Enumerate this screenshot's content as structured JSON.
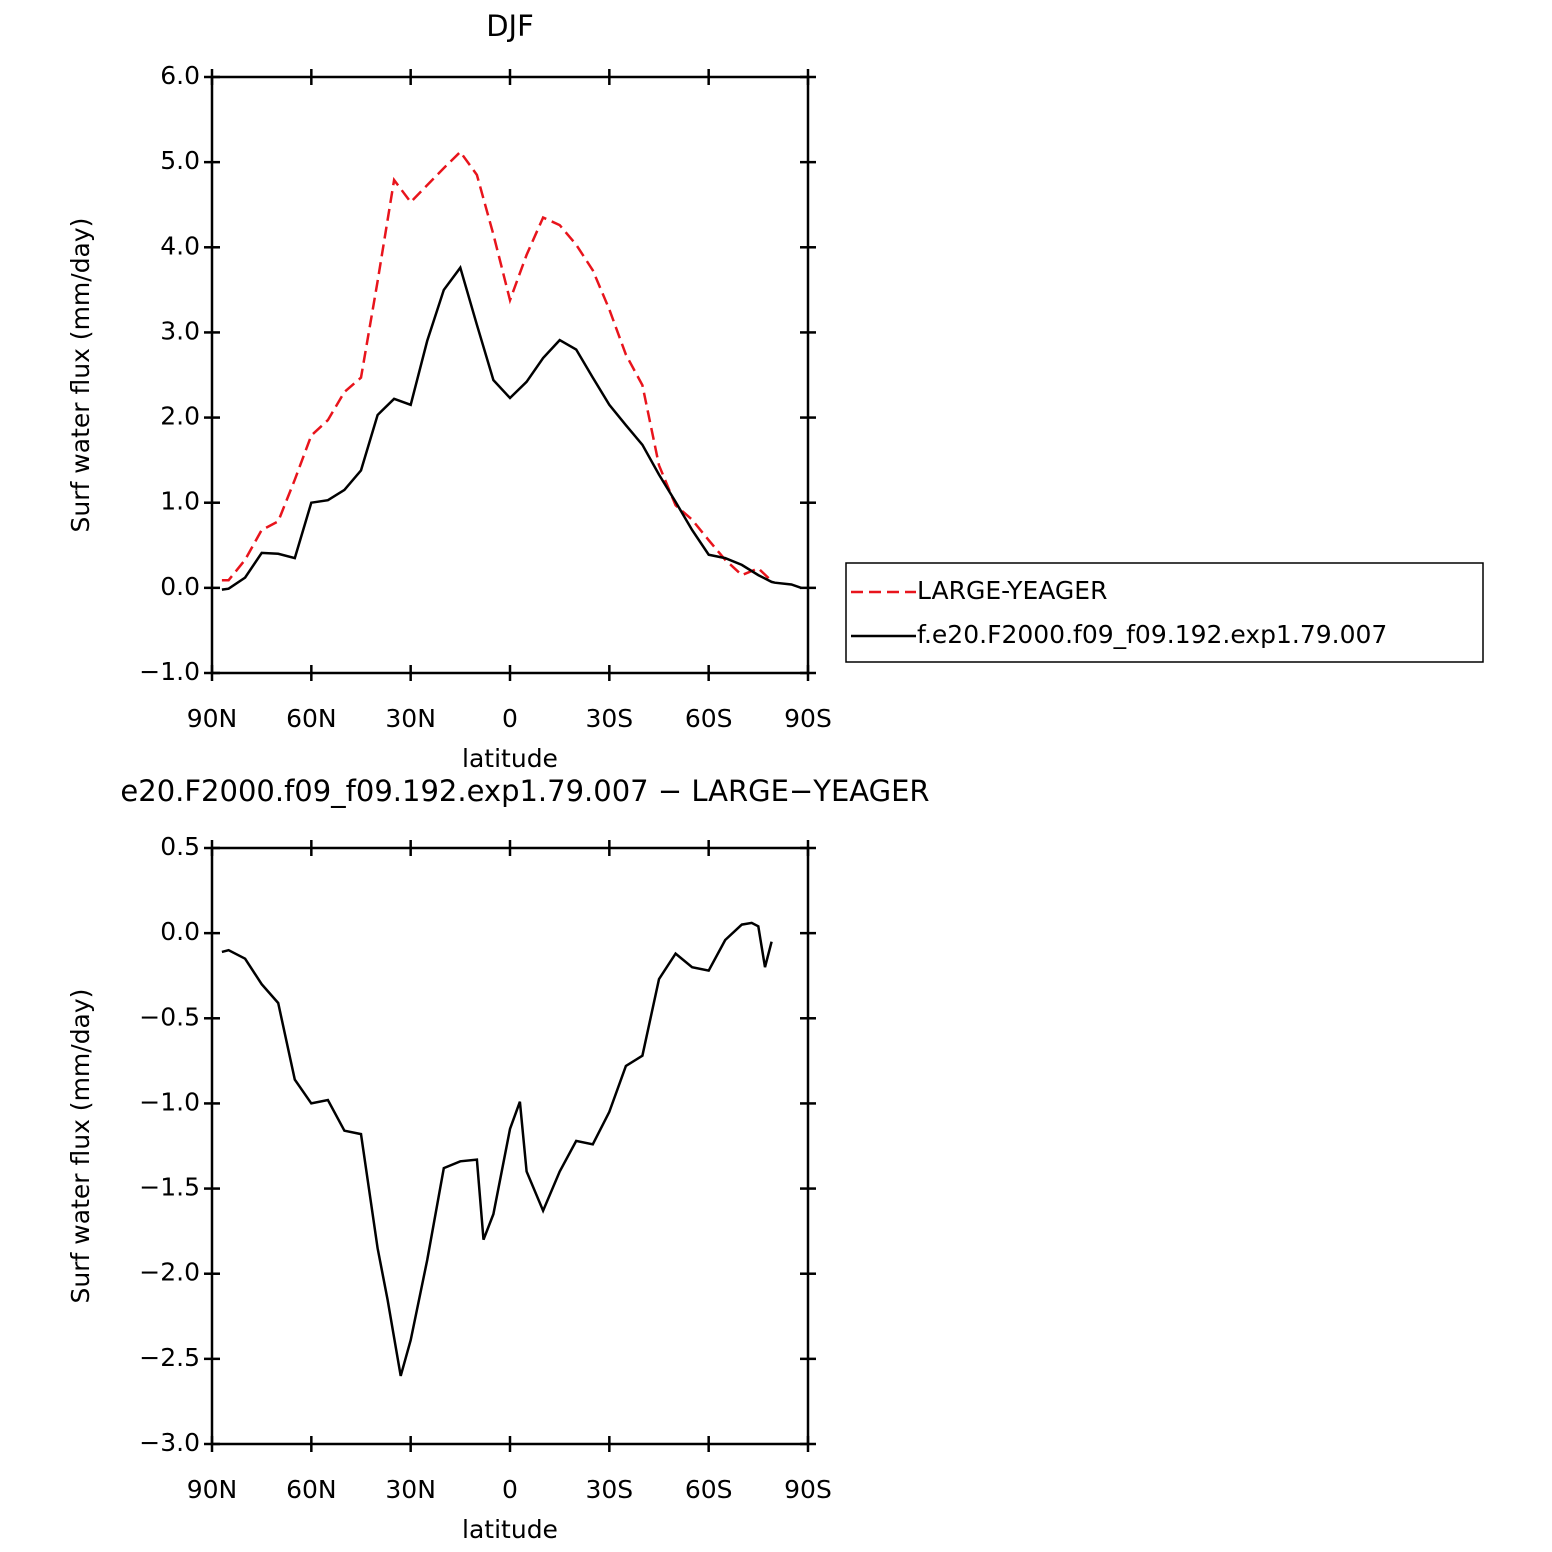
{
  "chart_data": [
    {
      "type": "line",
      "title": "DJF",
      "xlabel": "latitude",
      "ylabel": "Surf water flux (mm/day)",
      "x": [
        87,
        85,
        80,
        75,
        70,
        65,
        60,
        55,
        50,
        45,
        40,
        35,
        30,
        25,
        20,
        15,
        10,
        5,
        0,
        -5,
        -10,
        -15,
        -20,
        -25,
        -30,
        -35,
        -40,
        -45,
        -50,
        -55,
        -60,
        -65,
        -70,
        -75,
        -79,
        -80,
        -85,
        -88
      ],
      "series": [
        {
          "name": "LARGE-YEAGER",
          "color": "#e8141c",
          "style": "dashed",
          "values": [
            0.09,
            0.09,
            0.33,
            0.68,
            0.78,
            1.27,
            1.79,
            1.97,
            2.3,
            2.47,
            3.6,
            4.79,
            4.53,
            4.73,
            4.93,
            5.12,
            4.85,
            4.15,
            3.38,
            3.91,
            4.35,
            4.26,
            4.03,
            3.73,
            3.27,
            2.74,
            2.38,
            1.44,
            0.97,
            0.8,
            0.56,
            0.33,
            0.15,
            0.23,
            0.08,
            null,
            null,
            null
          ]
        },
        {
          "name": "f.e20.F2000.f09_f09.192.exp1.79.007",
          "color": "#000000",
          "style": "solid",
          "values": [
            -0.02,
            -0.01,
            0.12,
            0.41,
            0.4,
            0.35,
            1.0,
            1.03,
            1.15,
            1.38,
            2.03,
            2.22,
            2.15,
            2.9,
            3.5,
            3.76,
            3.09,
            2.44,
            2.23,
            2.42,
            2.7,
            2.91,
            2.8,
            2.47,
            2.15,
            1.91,
            1.68,
            1.33,
            1.01,
            0.68,
            0.39,
            0.35,
            0.27,
            0.15,
            0.07,
            0.06,
            0.04,
            0.0
          ]
        }
      ],
      "xlim": [
        90,
        -90
      ],
      "xticks": [
        {
          "value": 90,
          "label": "90N"
        },
        {
          "value": 60,
          "label": "60N"
        },
        {
          "value": 30,
          "label": "30N"
        },
        0,
        {
          "value": -30,
          "label": "30S"
        },
        {
          "value": -60,
          "label": "60S"
        },
        {
          "value": -90,
          "label": "90S"
        }
      ],
      "ylim": [
        -1,
        6
      ],
      "yticks": [
        {
          "value": -1,
          "label": "−1.0"
        },
        {
          "value": 0,
          "label": "0.0"
        },
        {
          "value": 1,
          "label": "1.0"
        },
        {
          "value": 2,
          "label": "2.0"
        },
        {
          "value": 3,
          "label": "3.0"
        },
        {
          "value": 4,
          "label": "4.0"
        },
        {
          "value": 5,
          "label": "5.0"
        },
        {
          "value": 6,
          "label": "6.0"
        }
      ],
      "legend": "right"
    },
    {
      "type": "line",
      "title": "e20.F2000.f09_f09.192.exp1.79.007 − LARGE−YEAGER",
      "xlabel": "latitude",
      "ylabel": "Surf water flux (mm/day)",
      "x": [
        87,
        85,
        80,
        75,
        70,
        65,
        60,
        55,
        50,
        45,
        40,
        37,
        33,
        30,
        25,
        20,
        15,
        10,
        8,
        5,
        0,
        -3,
        -5,
        -10,
        -15,
        -20,
        -25,
        -30,
        -35,
        -40,
        -45,
        -50,
        -55,
        -60,
        -65,
        -70,
        -73,
        -75,
        -77,
        -79
      ],
      "series": [
        {
          "color": "#000000",
          "style": "solid",
          "values": [
            -0.11,
            -0.1,
            -0.15,
            -0.3,
            -0.41,
            -0.86,
            -1.0,
            -0.98,
            -1.16,
            -1.18,
            -1.85,
            -2.15,
            -2.6,
            -2.39,
            -1.92,
            -1.38,
            -1.34,
            -1.33,
            -1.8,
            -1.65,
            -1.15,
            -0.99,
            -1.4,
            -1.63,
            -1.4,
            -1.22,
            -1.24,
            -1.05,
            -0.78,
            -0.72,
            -0.27,
            -0.12,
            -0.2,
            -0.22,
            -0.04,
            0.05,
            0.06,
            0.04,
            -0.2,
            -0.05
          ]
        }
      ],
      "xlim": [
        90,
        -90
      ],
      "xticks": [
        {
          "value": 90,
          "label": "90N"
        },
        {
          "value": 60,
          "label": "60N"
        },
        {
          "value": 30,
          "label": "30N"
        },
        0,
        {
          "value": -30,
          "label": "30S"
        },
        {
          "value": -60,
          "label": "60S"
        },
        {
          "value": -90,
          "label": "90S"
        }
      ],
      "ylim": [
        -3,
        0.5
      ],
      "yticks": [
        {
          "value": -3,
          "label": "−3.0"
        },
        {
          "value": -2.5,
          "label": "−2.5"
        },
        {
          "value": -2,
          "label": "−2.0"
        },
        {
          "value": -1.5,
          "label": "−1.5"
        },
        {
          "value": -1,
          "label": "−1.0"
        },
        {
          "value": -0.5,
          "label": "−0.5"
        },
        {
          "value": 0,
          "label": "0.0"
        },
        0.5
      ]
    }
  ]
}
